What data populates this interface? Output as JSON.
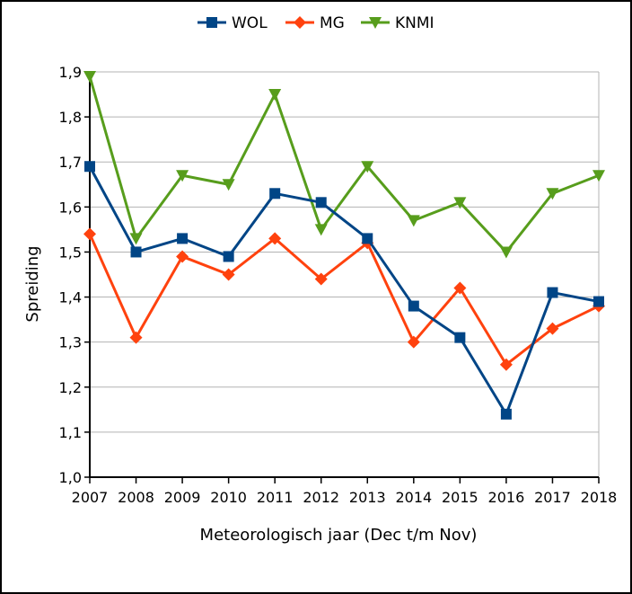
{
  "chart_data": {
    "type": "line",
    "x": [
      "2007",
      "2008",
      "2009",
      "2010",
      "2011",
      "2012",
      "2013",
      "2014",
      "2015",
      "2016",
      "2017",
      "2018"
    ],
    "xlabel": "Meteorologisch jaar (Dec t/m Nov)",
    "ylabel": "Spreiding",
    "ylim": [
      1.0,
      1.9
    ],
    "yticks": [
      "1,0",
      "1,1",
      "1,2",
      "1,3",
      "1,4",
      "1,5",
      "1,6",
      "1,7",
      "1,8",
      "1,9"
    ],
    "grid": true,
    "legend_position": "top",
    "series": [
      {
        "name": "WOL",
        "color": "#004586",
        "marker": "square",
        "values": [
          1.69,
          1.5,
          1.53,
          1.49,
          1.63,
          1.61,
          1.53,
          1.38,
          1.31,
          1.14,
          1.41,
          1.39
        ]
      },
      {
        "name": "MG",
        "color": "#ff420e",
        "marker": "diamond",
        "values": [
          1.54,
          1.31,
          1.49,
          1.45,
          1.53,
          1.44,
          1.52,
          1.3,
          1.42,
          1.25,
          1.33,
          1.38
        ]
      },
      {
        "name": "KNMI",
        "color": "#579d1c",
        "marker": "triangle-down",
        "values": [
          1.89,
          1.53,
          1.67,
          1.65,
          1.85,
          1.55,
          1.69,
          1.57,
          1.61,
          1.5,
          1.63,
          1.67
        ]
      }
    ]
  }
}
